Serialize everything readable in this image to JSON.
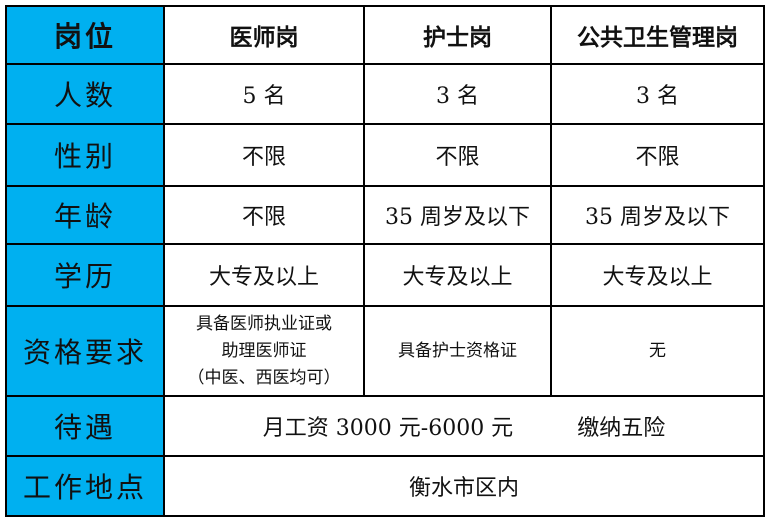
{
  "colors": {
    "label_column_bg": "#00b0f0",
    "border": "#000000"
  },
  "header": {
    "label": "岗位",
    "cols": [
      "医师岗",
      "护士岗",
      "公共卫生管理岗"
    ]
  },
  "rows": [
    {
      "label": "人数",
      "cells": [
        "5 名",
        "3 名",
        "3 名"
      ]
    },
    {
      "label": "性别",
      "cells": [
        "不限",
        "不限",
        "不限"
      ]
    },
    {
      "label": "年龄",
      "cells": [
        "不限",
        "35 周岁及以下",
        "35 周岁及以下"
      ]
    },
    {
      "label": "学历",
      "cells": [
        "大专及以上",
        "大专及以上",
        "大专及以上"
      ]
    }
  ],
  "qualification": {
    "label": "资格要求",
    "doctor_lines": [
      "具备医师执业证或",
      "助理医师证",
      "（中医、西医均可）"
    ],
    "nurse": "具备护士资格证",
    "public_health": "无"
  },
  "benefits": {
    "label": "待遇",
    "value": "月工资 3000 元-6000 元",
    "extra": "缴纳五险"
  },
  "location": {
    "label": "工作地点",
    "value": "衡水市区内"
  }
}
